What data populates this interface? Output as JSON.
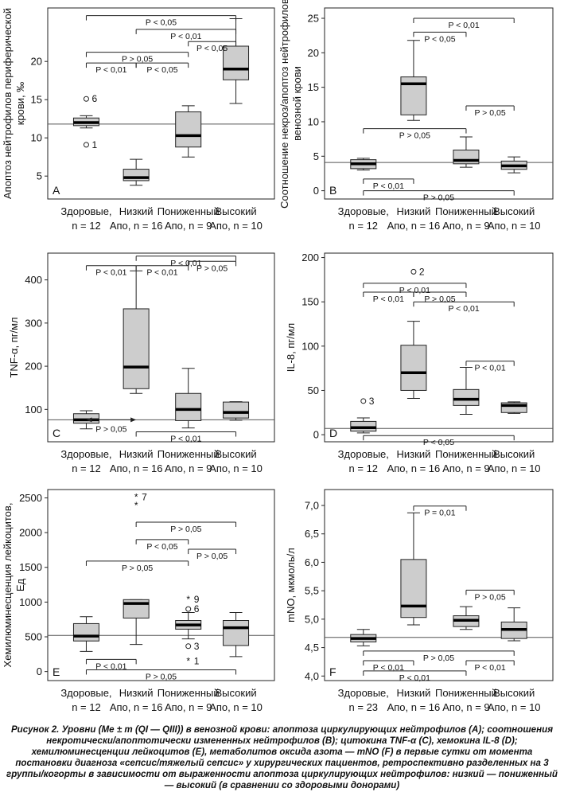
{
  "caption": {
    "label": "Рисунок 2.",
    "text": "Уровни (Me ± m (QI — QIII)) в венозной крови: апоптоза циркулирующих нейтрофилов (A); соотношения некротически/апоптотически измененных нейтрофилов (B); цитокина TNF-α (C), хемокина IL-8 (D); хемилюминесценции лейкоцитов (E), метаболитов оксида азота — mNO (F) в первые сутки от момента постановки диагноза «сепсис/тяжелый сепсис» у хирургических пациентов, ретроспективно разделенных на 3 группы/когорты в зависимости от выраженности апоптоза циркулирующих нейтрофилов: низкий — пониженный — высокий (в сравнении со здоровыми донорами)"
  },
  "chart_data": [
    {
      "type": "box",
      "panel": "A",
      "ylabel": "Апоптоз нейтрофилов периферической крови, ‰",
      "ylim": [
        2,
        27
      ],
      "yticks": [
        5,
        10,
        15,
        20
      ],
      "reference_line": 11.8,
      "categories": [
        [
          "Здоровые,",
          "n = 12"
        ],
        [
          "Низкий",
          "Апо, n = 16"
        ],
        [
          "Пониженный",
          "Апо, n = 9"
        ],
        [
          "Высокий",
          "Апо, n = 10"
        ]
      ],
      "boxes": [
        {
          "min": 11.3,
          "q1": 11.6,
          "median": 12.0,
          "q3": 12.6,
          "max": 12.9
        },
        {
          "min": 3.8,
          "q1": 4.4,
          "median": 4.8,
          "q3": 5.9,
          "max": 7.2
        },
        {
          "min": 7.5,
          "q1": 8.8,
          "median": 10.3,
          "q3": 13.4,
          "max": 14.2
        },
        {
          "min": 14.5,
          "q1": 17.6,
          "median": 19.0,
          "q3": 22.0,
          "max": 25.6
        }
      ],
      "outliers": [
        {
          "group": 0,
          "value": 15.1,
          "marker": "circle",
          "label": "6"
        },
        {
          "group": 0,
          "value": 9.1,
          "marker": "circle",
          "label": "1"
        }
      ],
      "comparisons": [
        {
          "from": 0,
          "to": 3,
          "y": 26.0,
          "label": "P < 0,05",
          "tick_at": "to"
        },
        {
          "from": 1,
          "to": 3,
          "y": 24.2,
          "label": "P < 0,01",
          "tick_at": "to"
        },
        {
          "from": 2,
          "to": 3,
          "y": 22.6,
          "label": "P < 0,05",
          "tick_at": "to"
        },
        {
          "from": 0,
          "to": 2,
          "y": 21.2,
          "label": "P > 0,05",
          "tick_at": "to"
        },
        {
          "from": 1,
          "to": 2,
          "y": 19.8,
          "label": "P < 0,05",
          "tick_at": "to"
        },
        {
          "from": 0,
          "to": 1,
          "y": 19.8,
          "label": "P < 0,01",
          "tick_at": "to"
        }
      ]
    },
    {
      "type": "box",
      "panel": "B",
      "ylabel": "Соотношение некроз/апоптоз нейтрофилов венозной крови",
      "ylim": [
        -1.2,
        26.5
      ],
      "yticks": [
        0,
        5,
        10,
        15,
        20,
        25
      ],
      "reference_line": 4.1,
      "categories": [
        [
          "Здоровые,",
          "n = 12"
        ],
        [
          "Низкий",
          "Апо, n = 16"
        ],
        [
          "Пониженный",
          "Апо, n = 9"
        ],
        [
          "Высокий",
          "Апо, n = 10"
        ]
      ],
      "boxes": [
        {
          "min": 3.0,
          "q1": 3.2,
          "median": 3.9,
          "q3": 4.5,
          "max": 4.7
        },
        {
          "min": 10.2,
          "q1": 11.0,
          "median": 15.5,
          "q3": 16.5,
          "max": 21.8
        },
        {
          "min": 3.4,
          "q1": 3.9,
          "median": 4.4,
          "q3": 5.9,
          "max": 7.8
        },
        {
          "min": 2.6,
          "q1": 3.1,
          "median": 3.6,
          "q3": 4.3,
          "max": 4.9
        }
      ],
      "outliers": [],
      "comparisons": [
        {
          "from": 1,
          "to": 3,
          "y": 25.0,
          "label": "P < 0,01",
          "tick_at": "to"
        },
        {
          "from": 1,
          "to": 2,
          "y": 23.0,
          "label": "P < 0,05",
          "tick_at": "to"
        },
        {
          "from": 2,
          "to": 3,
          "y": 12.3,
          "label": "P > 0,05",
          "tick_at": "to"
        },
        {
          "from": 0,
          "to": 2,
          "y": 9.0,
          "label": "P > 0,05",
          "tick_at": "to"
        },
        {
          "from": 0,
          "to": 1,
          "y": 1.7,
          "label": "P < 0,01",
          "tick_at": "to"
        },
        {
          "from": 0,
          "to": 3,
          "y": 0.0,
          "label": "P > 0,05",
          "tick_at": "to"
        }
      ]
    },
    {
      "type": "box",
      "panel": "C",
      "ylabel": "TNF-α, пг/мл",
      "ylim": [
        25,
        462
      ],
      "yticks": [
        100,
        200,
        300,
        400
      ],
      "reference_line": 76,
      "categories": [
        [
          "Здоровые,",
          "n = 12"
        ],
        [
          "Низкий",
          "Апо, n = 16"
        ],
        [
          "Пониженный",
          "Апо, n = 9"
        ],
        [
          "Высокий",
          "Апо, n = 10"
        ]
      ],
      "boxes": [
        {
          "min": 55,
          "q1": 68,
          "median": 76,
          "q3": 90,
          "max": 97
        },
        {
          "min": 137,
          "q1": 148,
          "median": 198,
          "q3": 333,
          "max": 421
        },
        {
          "min": 57,
          "q1": 74,
          "median": 100,
          "q3": 137,
          "max": 195
        },
        {
          "min": 75,
          "q1": 80,
          "median": 93,
          "q3": 117,
          "max": 118
        }
      ],
      "outliers": [],
      "comparisons": [
        {
          "from": 1,
          "to": 3,
          "y": 455,
          "label": "P < 0,01",
          "tick_at": "to"
        },
        {
          "from": 0,
          "to": 1,
          "y": 433,
          "label": "P < 0,01",
          "tick_at": "both"
        },
        {
          "from": 1,
          "to": 2,
          "y": 433,
          "label": "P < 0,01",
          "tick_at": "to"
        },
        {
          "from": 2,
          "to": 3,
          "y": 443,
          "label": "P > 0,05",
          "tick_at": "to"
        },
        {
          "from": 0,
          "to": 1,
          "y": 76,
          "label": "P > 0,05",
          "tick_at": "arrow"
        },
        {
          "from": 1,
          "to": 3,
          "y": 48,
          "label": "P < 0,01",
          "tick_at": "to"
        }
      ]
    },
    {
      "type": "box",
      "panel": "D",
      "ylabel": "IL-8, пг/мл",
      "ylim": [
        -8,
        205
      ],
      "yticks": [
        0,
        50,
        100,
        150,
        200
      ],
      "reference_line": 7,
      "categories": [
        [
          "Здоровые,",
          "n = 12"
        ],
        [
          "Низкий",
          "Апо, n = 16"
        ],
        [
          "Пониженный",
          "Апо, n = 9"
        ],
        [
          "Высокий",
          "Апо, n = 10"
        ]
      ],
      "boxes": [
        {
          "min": 2,
          "q1": 4,
          "median": 8,
          "q3": 15,
          "max": 19
        },
        {
          "min": 41,
          "q1": 50,
          "median": 70,
          "q3": 101,
          "max": 128
        },
        {
          "min": 23,
          "q1": 33,
          "median": 40,
          "q3": 51,
          "max": 76
        },
        {
          "min": 24,
          "q1": 25,
          "median": 33,
          "q3": 36,
          "max": 37
        }
      ],
      "outliers": [
        {
          "group": 1,
          "value": 184,
          "marker": "circle",
          "label": "2"
        },
        {
          "group": 0,
          "value": 38,
          "marker": "circle",
          "label": "3"
        }
      ],
      "comparisons": [
        {
          "from": 0,
          "to": 2,
          "y": 171,
          "label": "P < 0,01",
          "tick_at": "to"
        },
        {
          "from": 0,
          "to": 1,
          "y": 161,
          "label": "P < 0,01",
          "tick_at": "to"
        },
        {
          "from": 1,
          "to": 2,
          "y": 161,
          "label": "P > 0,05",
          "tick_at": "to"
        },
        {
          "from": 1,
          "to": 3,
          "y": 150,
          "label": "P < 0,01",
          "tick_at": "to"
        },
        {
          "from": 2,
          "to": 3,
          "y": 83,
          "label": "P < 0,01",
          "tick_at": "to"
        },
        {
          "from": 0,
          "to": 3,
          "y": -1,
          "label": "P < 0,05",
          "tick_at": "to"
        }
      ]
    },
    {
      "type": "box",
      "panel": "E",
      "ylabel": "Хемилюминесценция лейкоцитов, Ед",
      "ylim": [
        -130,
        2620
      ],
      "yticks": [
        0,
        500,
        1000,
        1500,
        2000,
        2500
      ],
      "reference_line": 520,
      "categories": [
        [
          "Здоровые,",
          "n = 12"
        ],
        [
          "Низкий",
          "Апо, n = 16"
        ],
        [
          "Пониженный",
          "Апо, n = 9"
        ],
        [
          "Высокий",
          "Апо, n = 10"
        ]
      ],
      "boxes": [
        {
          "min": 290,
          "q1": 440,
          "median": 510,
          "q3": 690,
          "max": 790
        },
        {
          "min": 390,
          "q1": 770,
          "median": 980,
          "q3": 1035,
          "max": 1035
        },
        {
          "min": 470,
          "q1": 610,
          "median": 670,
          "q3": 735,
          "max": 850
        },
        {
          "min": 215,
          "q1": 375,
          "median": 630,
          "q3": 735,
          "max": 850
        }
      ],
      "outliers": [
        {
          "group": 1,
          "value": 2510,
          "marker": "star",
          "label": "7"
        },
        {
          "group": 1,
          "value": 2390,
          "marker": "star",
          "label": ""
        },
        {
          "group": 2,
          "value": 1040,
          "marker": "star",
          "label": "9"
        },
        {
          "group": 2,
          "value": 900,
          "marker": "circle",
          "label": "6"
        },
        {
          "group": 2,
          "value": 365,
          "marker": "circle",
          "label": "3"
        },
        {
          "group": 2,
          "value": 150,
          "marker": "star",
          "label": "1"
        }
      ],
      "comparisons": [
        {
          "from": 1,
          "to": 3,
          "y": 2150,
          "label": "P > 0,05",
          "tick_at": "to"
        },
        {
          "from": 1,
          "to": 2,
          "y": 1900,
          "label": "P < 0,05",
          "tick_at": "to"
        },
        {
          "from": 2,
          "to": 3,
          "y": 1760,
          "label": "P > 0,05",
          "tick_at": "to"
        },
        {
          "from": 0,
          "to": 2,
          "y": 1590,
          "label": "P > 0,05",
          "tick_at": "to"
        },
        {
          "from": 0,
          "to": 1,
          "y": 175,
          "label": "P < 0,01",
          "tick_at": "to"
        },
        {
          "from": 0,
          "to": 3,
          "y": 25,
          "label": "P > 0,05",
          "tick_at": "to"
        }
      ]
    },
    {
      "type": "box",
      "panel": "F",
      "ylabel": "mNO, мкмоль/л",
      "ylim": [
        3.92,
        7.28
      ],
      "yticks": [
        4.0,
        4.5,
        5.0,
        5.5,
        6.0,
        6.5,
        7.0
      ],
      "ytick_labels": [
        "4,0",
        "4,5",
        "5,0",
        "5,5",
        "6,0",
        "6,5",
        "7,0"
      ],
      "reference_line": 4.68,
      "categories": [
        [
          "Здоровые,",
          "n = 23"
        ],
        [
          "Низкий",
          "Апо, n = 16"
        ],
        [
          "Пониженный",
          "Апо, n = 9"
        ],
        [
          "Высокий",
          "Апо, n = 10"
        ]
      ],
      "boxes": [
        {
          "min": 4.53,
          "q1": 4.6,
          "median": 4.66,
          "q3": 4.73,
          "max": 4.82
        },
        {
          "min": 4.9,
          "q1": 5.03,
          "median": 5.23,
          "q3": 6.05,
          "max": 6.87
        },
        {
          "min": 4.82,
          "q1": 4.87,
          "median": 4.98,
          "q3": 5.06,
          "max": 5.22
        },
        {
          "min": 4.62,
          "q1": 4.66,
          "median": 4.82,
          "q3": 4.95,
          "max": 5.2
        }
      ],
      "outliers": [],
      "comparisons": [
        {
          "from": 1,
          "to": 2,
          "y": 6.99,
          "label": "P = 0,01",
          "tick_at": "to"
        },
        {
          "from": 2,
          "to": 3,
          "y": 5.51,
          "label": "P > 0,05",
          "tick_at": "to"
        },
        {
          "from": 0,
          "to": 3,
          "y": 4.44,
          "label": "P > 0,05",
          "tick_at": "to"
        },
        {
          "from": 0,
          "to": 1,
          "y": 4.27,
          "label": "P < 0,01",
          "tick_at": "to"
        },
        {
          "from": 2,
          "to": 3,
          "y": 4.27,
          "label": "P < 0,01",
          "tick_at": "to"
        },
        {
          "from": 0,
          "to": 2,
          "y": 4.09,
          "label": "P < 0,01",
          "tick_at": "to"
        }
      ]
    }
  ]
}
